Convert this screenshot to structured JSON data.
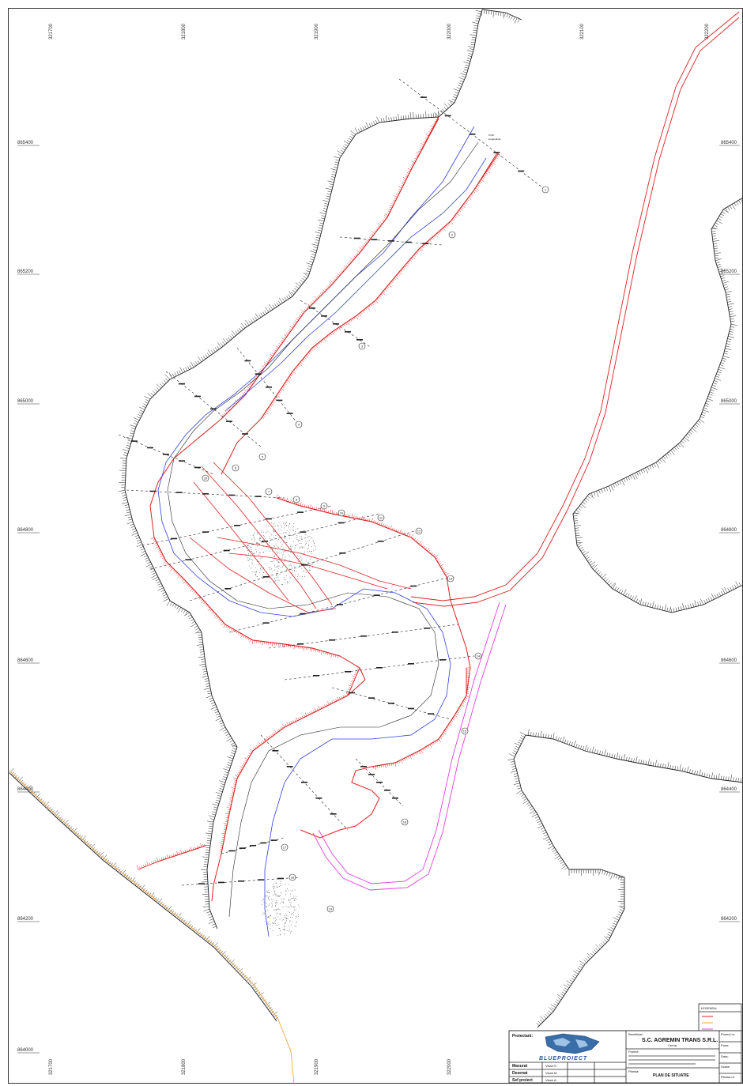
{
  "grid": {
    "top_labels": [
      "321700",
      "321800",
      "321900",
      "322000",
      "322100",
      "322200"
    ],
    "bottom_labels": [
      "321700",
      "321800",
      "321900",
      "322000"
    ],
    "left_labels": [
      "865400",
      "865200",
      "865000",
      "864800",
      "864600",
      "864400",
      "864200",
      "864000"
    ],
    "right_labels": [
      "865400",
      "865200",
      "865000",
      "864800",
      "864600",
      "864400",
      "864200"
    ]
  },
  "annotations": {
    "profile_label": [
      "Profil",
      "longitudinal"
    ]
  },
  "circle_markers": [
    "1",
    "2",
    "3",
    "4",
    "5",
    "6",
    "7",
    "8",
    "9",
    "10",
    "11",
    "12",
    "13",
    "14",
    "15",
    "16",
    "17",
    "18",
    "19",
    "20"
  ],
  "legend": {
    "title": "LEGENDA:",
    "colors": {
      "red": "#e02020",
      "orange": "#f0a030",
      "magenta": "#e040e0"
    }
  },
  "title_block": {
    "proiectant_label": "Proiectant:",
    "logo_text": "BLUEPROIECT",
    "beneficiar_label": "Beneficiar:",
    "company": "S.C. AGREMIN TRANS S.R.L.",
    "company_sub": "Cerna",
    "proiect_label": "Proiect:",
    "rows": [
      {
        "role": "Masurat",
        "name": "Visan S."
      },
      {
        "role": "Desenat",
        "name": "Visan M."
      },
      {
        "role": "Sef proiect",
        "name": "Visan A."
      }
    ],
    "plansa_label": "Plansa:",
    "plansa_title": "PLAN DE SITUATIE",
    "right_labels": [
      "Proiect nr.",
      "Faza:",
      "Data:",
      "Scara:",
      "Plansa nr."
    ]
  }
}
